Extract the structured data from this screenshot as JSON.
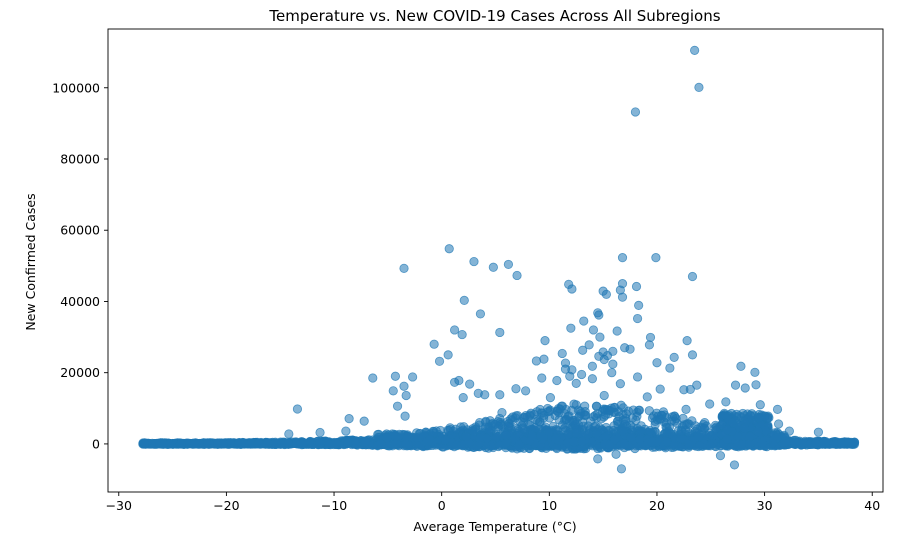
{
  "chart_data": {
    "type": "scatter",
    "title": "Temperature vs. New COVID-19 Cases Across All Subregions",
    "xlabel": "Average Temperature (°C)",
    "ylabel": "New Confirmed Cases",
    "xlim": [
      -31,
      41
    ],
    "ylim": [
      -13500,
      116500
    ],
    "xticks": [
      -30,
      -20,
      -10,
      0,
      10,
      20,
      30,
      40
    ],
    "xtick_labels": [
      "−30",
      "−20",
      "−10",
      "0",
      "10",
      "20",
      "30",
      "40"
    ],
    "yticks": [
      0,
      20000,
      40000,
      60000,
      80000,
      100000
    ],
    "ytick_labels": [
      "0",
      "20000",
      "40000",
      "60000",
      "80000",
      "100000"
    ],
    "marker_color": "#1f77b4",
    "marker_alpha": 0.55,
    "grid": false,
    "outliers": [
      [
        23.5,
        110500
      ],
      [
        23.9,
        100100
      ],
      [
        18.0,
        93200
      ],
      [
        0.7,
        54800
      ],
      [
        16.8,
        52300
      ],
      [
        19.9,
        52300
      ],
      [
        3.0,
        51200
      ],
      [
        6.2,
        50400
      ],
      [
        -3.5,
        49300
      ],
      [
        4.8,
        49600
      ],
      [
        7.0,
        47300
      ],
      [
        23.3,
        47000
      ],
      [
        16.8,
        45000
      ],
      [
        11.8,
        44800
      ],
      [
        18.1,
        44200
      ],
      [
        16.6,
        43200
      ],
      [
        12.1,
        43500
      ],
      [
        15.0,
        42900
      ],
      [
        15.3,
        42000
      ],
      [
        16.8,
        41200
      ],
      [
        2.1,
        40300
      ],
      [
        18.3,
        38900
      ],
      [
        3.6,
        36500
      ],
      [
        14.5,
        36800
      ],
      [
        14.6,
        36200
      ],
      [
        18.2,
        35200
      ],
      [
        13.2,
        34500
      ],
      [
        12.0,
        32500
      ],
      [
        14.1,
        32000
      ],
      [
        16.3,
        31700
      ],
      [
        1.2,
        32000
      ],
      [
        5.4,
        31300
      ],
      [
        14.7,
        30000
      ],
      [
        19.4,
        29900
      ],
      [
        22.8,
        29000
      ],
      [
        9.6,
        29000
      ],
      [
        1.9,
        30700
      ],
      [
        -0.7,
        28000
      ],
      [
        13.7,
        27800
      ],
      [
        19.3,
        27800
      ],
      [
        17.0,
        27000
      ],
      [
        17.5,
        26600
      ],
      [
        13.1,
        26300
      ],
      [
        15.9,
        26000
      ],
      [
        15.0,
        25800
      ],
      [
        11.2,
        25400
      ],
      [
        15.4,
        24800
      ],
      [
        0.6,
        25000
      ],
      [
        23.3,
        25000
      ],
      [
        14.6,
        24600
      ],
      [
        21.6,
        24300
      ],
      [
        15.1,
        23700
      ],
      [
        9.5,
        23800
      ],
      [
        8.8,
        23300
      ],
      [
        -0.2,
        23200
      ],
      [
        11.5,
        22700
      ],
      [
        20.0,
        22800
      ],
      [
        15.9,
        22400
      ],
      [
        14.0,
        21800
      ],
      [
        27.8,
        21800
      ],
      [
        21.2,
        21300
      ],
      [
        11.5,
        21000
      ],
      [
        12.1,
        20800
      ],
      [
        15.8,
        20000
      ],
      [
        13.0,
        19500
      ],
      [
        29.1,
        20100
      ],
      [
        11.9,
        19000
      ],
      [
        -4.3,
        19000
      ],
      [
        14.0,
        18300
      ],
      [
        -6.4,
        18500
      ],
      [
        -2.7,
        18800
      ],
      [
        18.2,
        18800
      ],
      [
        9.3,
        18500
      ],
      [
        10.7,
        17800
      ],
      [
        12.5,
        17000
      ],
      [
        1.2,
        17300
      ],
      [
        1.6,
        17800
      ],
      [
        16.6,
        16900
      ],
      [
        23.7,
        16500
      ],
      [
        2.6,
        16800
      ],
      [
        -3.5,
        16200
      ],
      [
        28.2,
        15700
      ],
      [
        29.2,
        16600
      ],
      [
        27.3,
        16500
      ],
      [
        22.5,
        15200
      ],
      [
        23.1,
        15300
      ],
      [
        20.3,
        15400
      ],
      [
        6.9,
        15500
      ],
      [
        7.8,
        14900
      ],
      [
        -4.5,
        14900
      ],
      [
        3.4,
        14200
      ],
      [
        -3.3,
        13600
      ],
      [
        5.4,
        13800
      ],
      [
        4.0,
        13800
      ],
      [
        15.1,
        13600
      ],
      [
        19.1,
        13200
      ],
      [
        2.0,
        13000
      ],
      [
        10.1,
        13000
      ],
      [
        24.9,
        11200
      ],
      [
        29.6,
        11000
      ],
      [
        26.4,
        11800
      ],
      [
        31.2,
        9700
      ],
      [
        -13.4,
        9800
      ],
      [
        22.7,
        9700
      ],
      [
        -4.1,
        10600
      ],
      [
        11.0,
        9800
      ],
      [
        12.7,
        9500
      ],
      [
        -8.6,
        7100
      ],
      [
        -7.2,
        6400
      ],
      [
        -3.4,
        7800
      ],
      [
        5.6,
        8800
      ],
      [
        8.6,
        8300
      ],
      [
        14.1,
        7600
      ],
      [
        17.8,
        9500
      ],
      [
        20.6,
        9000
      ],
      [
        31.3,
        5600
      ],
      [
        32.3,
        3600
      ],
      [
        35.0,
        3300
      ],
      [
        -14.2,
        2800
      ],
      [
        -11.3,
        3200
      ],
      [
        -8.9,
        3600
      ],
      [
        16.7,
        -7000
      ],
      [
        27.2,
        -5900
      ],
      [
        16.2,
        -2900
      ],
      [
        25.9,
        -3300
      ],
      [
        14.5,
        -4200
      ],
      [
        7.0,
        -1400
      ],
      [
        10.7,
        -1300
      ]
    ]
  }
}
